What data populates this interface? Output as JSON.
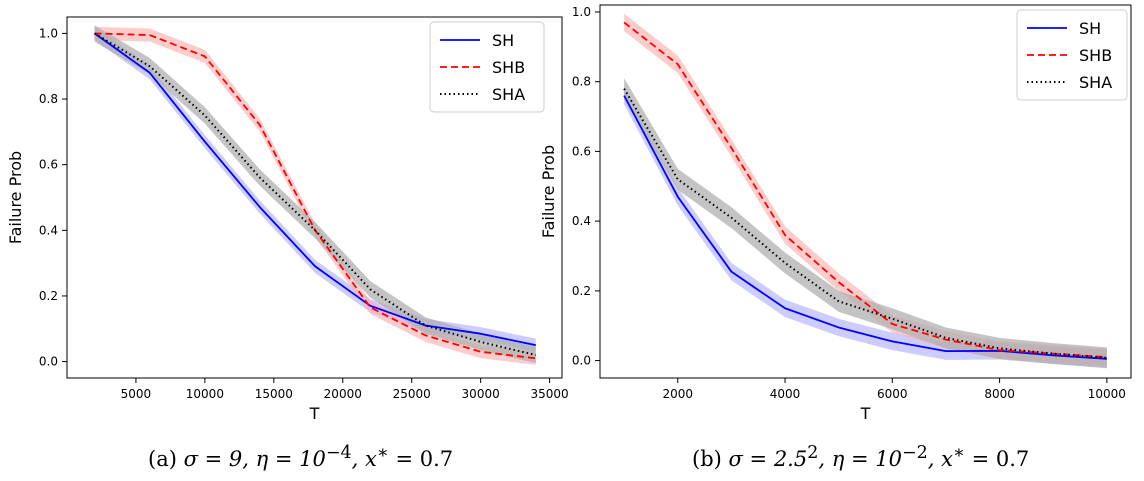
{
  "colors": {
    "SH": "#0000ff",
    "SHB": "#ff0000",
    "SHA": "#000000",
    "SH_band": "#aaaaff",
    "SHB_band": "#ffaaaa",
    "SHA_band": "#b0b0b0"
  },
  "chart_data": [
    {
      "type": "line",
      "panel": "a",
      "xlabel": "T",
      "ylabel": "Failure Prob",
      "xlim": [
        0,
        35900
      ],
      "ylim": [
        -0.05,
        1.05
      ],
      "xticks": [
        5000,
        10000,
        15000,
        20000,
        25000,
        30000,
        35000
      ],
      "xtick_labels": [
        "5000",
        "10000",
        "15000",
        "20000",
        "25000",
        "30000",
        "35000"
      ],
      "yticks": [
        0.0,
        0.2,
        0.4,
        0.6,
        0.8,
        1.0
      ],
      "ytick_labels": [
        "0.0",
        "0.2",
        "0.4",
        "0.6",
        "0.8",
        "1.0"
      ],
      "legend_position": "top-right",
      "grid": false,
      "x": [
        2000,
        6000,
        10000,
        14000,
        18000,
        22000,
        26000,
        30000,
        34000
      ],
      "series": [
        {
          "name": "SH",
          "style": "solid",
          "values": [
            1.0,
            0.88,
            0.67,
            0.47,
            0.29,
            0.17,
            0.11,
            0.085,
            0.05
          ],
          "band": 0.02
        },
        {
          "name": "SHB",
          "style": "dashed",
          "values": [
            1.0,
            0.995,
            0.93,
            0.72,
            0.4,
            0.165,
            0.08,
            0.03,
            0.01
          ],
          "band": 0.02
        },
        {
          "name": "SHA",
          "style": "dotted",
          "values": [
            1.0,
            0.9,
            0.75,
            0.56,
            0.4,
            0.22,
            0.11,
            0.06,
            0.02
          ],
          "band": 0.025
        }
      ],
      "caption_math": "σ = 9, η = 10",
      "caption_exp": "−4",
      "caption_tail": ", x",
      "caption_star": "∗",
      "caption_end": " = 0.7",
      "caption_label": "(a)"
    },
    {
      "type": "line",
      "panel": "b",
      "xlabel": "T",
      "ylabel": "Failure Prob",
      "xlim": [
        550,
        10450
      ],
      "ylim": [
        -0.05,
        1.02
      ],
      "xticks": [
        2000,
        4000,
        6000,
        8000,
        10000
      ],
      "xtick_labels": [
        "2000",
        "4000",
        "6000",
        "8000",
        "10000"
      ],
      "yticks": [
        0.0,
        0.2,
        0.4,
        0.6,
        0.8,
        1.0
      ],
      "ytick_labels": [
        "0.0",
        "0.2",
        "0.4",
        "0.6",
        "0.8",
        "1.0"
      ],
      "legend_position": "top-right",
      "grid": false,
      "x": [
        1000,
        2000,
        3000,
        4000,
        5000,
        6000,
        7000,
        8000,
        9000,
        10000
      ],
      "series": [
        {
          "name": "SH",
          "style": "solid",
          "values": [
            0.76,
            0.47,
            0.255,
            0.15,
            0.095,
            0.055,
            0.027,
            0.028,
            0.015,
            0.005
          ],
          "band": 0.025
        },
        {
          "name": "SHB",
          "style": "dashed",
          "values": [
            0.97,
            0.85,
            0.61,
            0.36,
            0.225,
            0.105,
            0.06,
            0.03,
            0.02,
            0.01
          ],
          "band": 0.025
        },
        {
          "name": "SHA",
          "style": "dotted",
          "values": [
            0.78,
            0.52,
            0.41,
            0.28,
            0.17,
            0.12,
            0.065,
            0.035,
            0.02,
            0.008
          ],
          "band": 0.03
        }
      ],
      "caption_math": "σ = 2.5",
      "caption_exp2": "2",
      "caption_mid": ", η = 10",
      "caption_exp": "−2",
      "caption_tail": ", x",
      "caption_star": "∗",
      "caption_end": " = 0.7",
      "caption_label": "(b)"
    }
  ]
}
